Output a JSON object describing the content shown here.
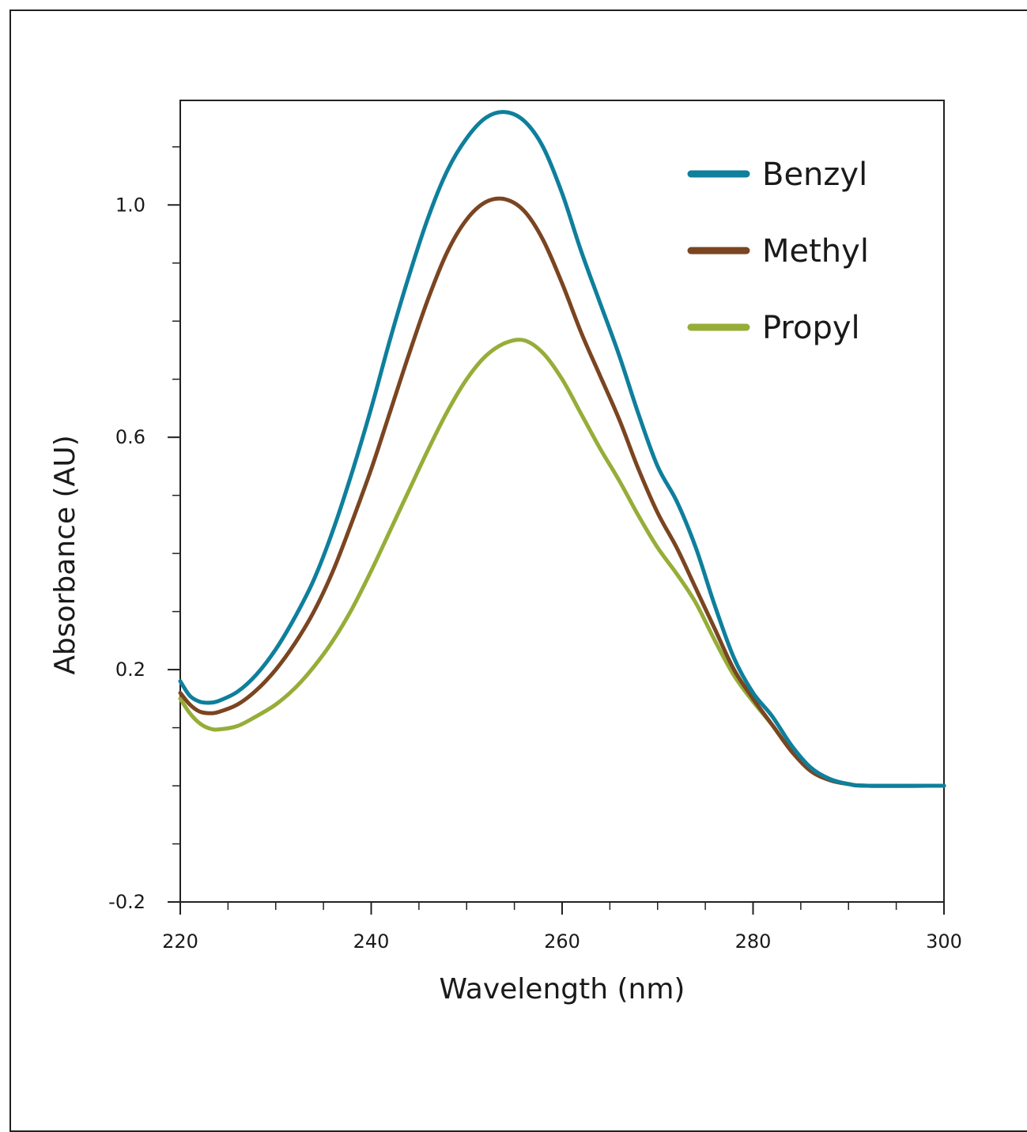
{
  "chart_data": {
    "type": "line",
    "title": "",
    "xlabel": "Wavelength (nm)",
    "ylabel": "Absorbance  (AU)",
    "xlim": [
      220,
      300
    ],
    "ylim": [
      -0.2,
      1.18
    ],
    "x_ticks": [
      220,
      240,
      260,
      280,
      300
    ],
    "x_tick_labels": [
      "220",
      "240",
      "260",
      "280",
      "300"
    ],
    "y_ticks": [
      -0.2,
      0.2,
      0.6,
      1.0
    ],
    "y_tick_labels": [
      "-0.2",
      "0.2",
      "0.6",
      "1.0"
    ],
    "legend_position": "top-right",
    "grid": false,
    "series": [
      {
        "name": "Benzyl",
        "color": "#0e7f9c",
        "points": [
          [
            220,
            0.18
          ],
          [
            221,
            0.155
          ],
          [
            222,
            0.145
          ],
          [
            223,
            0.143
          ],
          [
            224,
            0.146
          ],
          [
            226,
            0.162
          ],
          [
            228,
            0.192
          ],
          [
            230,
            0.235
          ],
          [
            232,
            0.29
          ],
          [
            234,
            0.355
          ],
          [
            236,
            0.44
          ],
          [
            238,
            0.54
          ],
          [
            240,
            0.65
          ],
          [
            242,
            0.77
          ],
          [
            244,
            0.88
          ],
          [
            246,
            0.98
          ],
          [
            248,
            1.06
          ],
          [
            250,
            1.115
          ],
          [
            252,
            1.15
          ],
          [
            254,
            1.16
          ],
          [
            256,
            1.145
          ],
          [
            258,
            1.1
          ],
          [
            260,
            1.02
          ],
          [
            262,
            0.92
          ],
          [
            264,
            0.83
          ],
          [
            266,
            0.74
          ],
          [
            268,
            0.64
          ],
          [
            270,
            0.55
          ],
          [
            272,
            0.49
          ],
          [
            274,
            0.41
          ],
          [
            276,
            0.31
          ],
          [
            278,
            0.22
          ],
          [
            280,
            0.16
          ],
          [
            282,
            0.12
          ],
          [
            284,
            0.07
          ],
          [
            286,
            0.032
          ],
          [
            288,
            0.012
          ],
          [
            290,
            0.003
          ],
          [
            292,
            0.0
          ],
          [
            300,
            0.0
          ]
        ]
      },
      {
        "name": "Methyl",
        "color": "#7a4521",
        "points": [
          [
            220,
            0.16
          ],
          [
            221,
            0.14
          ],
          [
            222,
            0.128
          ],
          [
            223,
            0.125
          ],
          [
            224,
            0.127
          ],
          [
            226,
            0.14
          ],
          [
            228,
            0.165
          ],
          [
            230,
            0.2
          ],
          [
            232,
            0.245
          ],
          [
            234,
            0.3
          ],
          [
            236,
            0.37
          ],
          [
            238,
            0.455
          ],
          [
            240,
            0.545
          ],
          [
            242,
            0.645
          ],
          [
            244,
            0.745
          ],
          [
            246,
            0.84
          ],
          [
            248,
            0.92
          ],
          [
            250,
            0.975
          ],
          [
            252,
            1.005
          ],
          [
            254,
            1.01
          ],
          [
            256,
            0.99
          ],
          [
            258,
            0.94
          ],
          [
            260,
            0.865
          ],
          [
            262,
            0.78
          ],
          [
            264,
            0.705
          ],
          [
            266,
            0.63
          ],
          [
            268,
            0.545
          ],
          [
            270,
            0.47
          ],
          [
            272,
            0.41
          ],
          [
            274,
            0.34
          ],
          [
            276,
            0.27
          ],
          [
            278,
            0.2
          ],
          [
            280,
            0.15
          ],
          [
            282,
            0.105
          ],
          [
            284,
            0.06
          ],
          [
            286,
            0.026
          ],
          [
            288,
            0.01
          ],
          [
            290,
            0.003
          ],
          [
            292,
            0.0
          ],
          [
            300,
            0.0
          ]
        ]
      },
      {
        "name": "Propyl",
        "color": "#96ad38",
        "points": [
          [
            220,
            0.15
          ],
          [
            221,
            0.125
          ],
          [
            222,
            0.108
          ],
          [
            223,
            0.099
          ],
          [
            224,
            0.097
          ],
          [
            226,
            0.103
          ],
          [
            228,
            0.12
          ],
          [
            230,
            0.14
          ],
          [
            232,
            0.168
          ],
          [
            234,
            0.205
          ],
          [
            236,
            0.25
          ],
          [
            238,
            0.305
          ],
          [
            240,
            0.37
          ],
          [
            242,
            0.44
          ],
          [
            244,
            0.51
          ],
          [
            246,
            0.58
          ],
          [
            248,
            0.645
          ],
          [
            250,
            0.7
          ],
          [
            252,
            0.74
          ],
          [
            254,
            0.762
          ],
          [
            256,
            0.767
          ],
          [
            258,
            0.745
          ],
          [
            260,
            0.7
          ],
          [
            262,
            0.64
          ],
          [
            264,
            0.58
          ],
          [
            266,
            0.525
          ],
          [
            268,
            0.465
          ],
          [
            270,
            0.41
          ],
          [
            272,
            0.365
          ],
          [
            274,
            0.315
          ],
          [
            276,
            0.25
          ],
          [
            278,
            0.19
          ],
          [
            280,
            0.145
          ],
          [
            282,
            0.105
          ],
          [
            284,
            0.06
          ],
          [
            286,
            0.026
          ],
          [
            288,
            0.01
          ],
          [
            290,
            0.003
          ],
          [
            292,
            0.0
          ],
          [
            300,
            0.0
          ]
        ]
      }
    ]
  }
}
